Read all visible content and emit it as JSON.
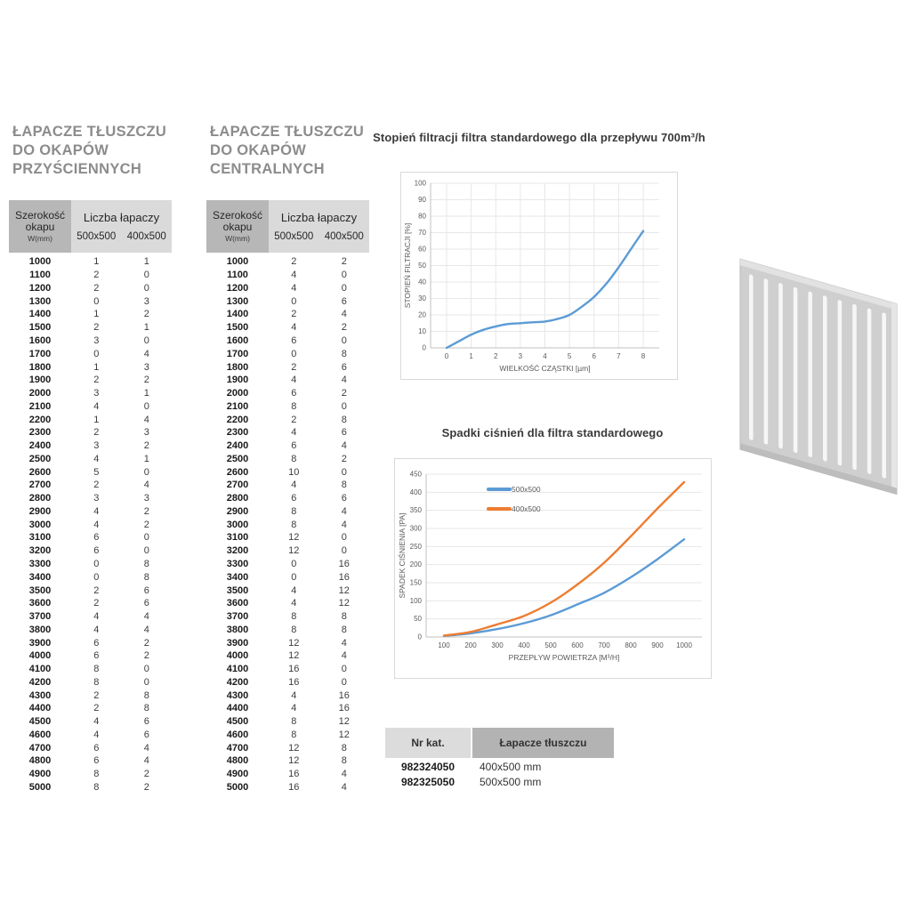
{
  "tables": {
    "wall": {
      "title": "ŁAPACZE TŁUSZCZU\nDO OKAPÓW\nPRZYŚCIENNYCH",
      "header": {
        "width_label": "Szerokość\nokapu",
        "width_unit": "W(mm)",
        "group_label": "Liczba łapaczy",
        "size_columns": [
          "500x500",
          "400x500"
        ]
      },
      "rows": [
        [
          1000,
          1,
          1
        ],
        [
          1100,
          2,
          0
        ],
        [
          1200,
          2,
          0
        ],
        [
          1300,
          0,
          3
        ],
        [
          1400,
          1,
          2
        ],
        [
          1500,
          2,
          1
        ],
        [
          1600,
          3,
          0
        ],
        [
          1700,
          0,
          4
        ],
        [
          1800,
          1,
          3
        ],
        [
          1900,
          2,
          2
        ],
        [
          2000,
          3,
          1
        ],
        [
          2100,
          4,
          0
        ],
        [
          2200,
          1,
          4
        ],
        [
          2300,
          2,
          3
        ],
        [
          2400,
          3,
          2
        ],
        [
          2500,
          4,
          1
        ],
        [
          2600,
          5,
          0
        ],
        [
          2700,
          2,
          4
        ],
        [
          2800,
          3,
          3
        ],
        [
          2900,
          4,
          2
        ],
        [
          3000,
          4,
          2
        ],
        [
          3100,
          6,
          0
        ],
        [
          3200,
          6,
          0
        ],
        [
          3300,
          0,
          8
        ],
        [
          3400,
          0,
          8
        ],
        [
          3500,
          2,
          6
        ],
        [
          3600,
          2,
          6
        ],
        [
          3700,
          4,
          4
        ],
        [
          3800,
          4,
          4
        ],
        [
          3900,
          6,
          2
        ],
        [
          4000,
          6,
          2
        ],
        [
          4100,
          8,
          0
        ],
        [
          4200,
          8,
          0
        ],
        [
          4300,
          2,
          8
        ],
        [
          4400,
          2,
          8
        ],
        [
          4500,
          4,
          6
        ],
        [
          4600,
          4,
          6
        ],
        [
          4700,
          6,
          4
        ],
        [
          4800,
          6,
          4
        ],
        [
          4900,
          8,
          2
        ],
        [
          5000,
          8,
          2
        ]
      ]
    },
    "central": {
      "title": "ŁAPACZE TŁUSZCZU\nDO OKAPÓW\nCENTRALNYCH",
      "header": {
        "width_label": "Szerokość\nokapu",
        "width_unit": "W(mm)",
        "group_label": "Liczba łapaczy",
        "size_columns": [
          "500x500",
          "400x500"
        ]
      },
      "rows": [
        [
          1000,
          2,
          2
        ],
        [
          1100,
          4,
          0
        ],
        [
          1200,
          4,
          0
        ],
        [
          1300,
          0,
          6
        ],
        [
          1400,
          2,
          4
        ],
        [
          1500,
          4,
          2
        ],
        [
          1600,
          6,
          0
        ],
        [
          1700,
          0,
          8
        ],
        [
          1800,
          2,
          6
        ],
        [
          1900,
          4,
          4
        ],
        [
          2000,
          6,
          2
        ],
        [
          2100,
          8,
          0
        ],
        [
          2200,
          2,
          8
        ],
        [
          2300,
          4,
          6
        ],
        [
          2400,
          6,
          4
        ],
        [
          2500,
          8,
          2
        ],
        [
          2600,
          10,
          0
        ],
        [
          2700,
          4,
          8
        ],
        [
          2800,
          6,
          6
        ],
        [
          2900,
          8,
          4
        ],
        [
          3000,
          8,
          4
        ],
        [
          3100,
          12,
          0
        ],
        [
          3200,
          12,
          0
        ],
        [
          3300,
          0,
          16
        ],
        [
          3400,
          0,
          16
        ],
        [
          3500,
          4,
          12
        ],
        [
          3600,
          4,
          12
        ],
        [
          3700,
          8,
          8
        ],
        [
          3800,
          8,
          8
        ],
        [
          3900,
          12,
          4
        ],
        [
          4000,
          12,
          4
        ],
        [
          4100,
          16,
          0
        ],
        [
          4200,
          16,
          0
        ],
        [
          4300,
          4,
          16
        ],
        [
          4400,
          4,
          16
        ],
        [
          4500,
          8,
          12
        ],
        [
          4600,
          8,
          12
        ],
        [
          4700,
          12,
          8
        ],
        [
          4800,
          12,
          8
        ],
        [
          4900,
          16,
          4
        ],
        [
          5000,
          16,
          4
        ]
      ]
    }
  },
  "chart_data": [
    {
      "type": "line",
      "title": "Stopień filtracji filtra standardowego dla przepływu 700m³/h",
      "xlabel": "WIELKOŚĆ CZĄSTKI [µm]",
      "ylabel": "STOPIEŃ FILTRACJI [%]",
      "xlim": [
        0,
        8
      ],
      "ylim": [
        0,
        100
      ],
      "xticks": [
        0,
        1,
        2,
        3,
        4,
        5,
        6,
        7,
        8
      ],
      "yticks": [
        0,
        10,
        20,
        30,
        40,
        50,
        60,
        70,
        80,
        90,
        100
      ],
      "grid": "both",
      "legend": null,
      "series": [
        {
          "color": "#5B9BD5",
          "x": [
            0,
            0.5,
            1,
            1.5,
            2,
            2.5,
            3,
            3.5,
            4,
            4.5,
            5,
            5.5,
            6,
            6.5,
            7,
            7.5,
            8
          ],
          "y": [
            0,
            4,
            8,
            11,
            13,
            14.5,
            15,
            15.5,
            16,
            17.5,
            20,
            25,
            31,
            39,
            49,
            60,
            71
          ]
        }
      ]
    },
    {
      "type": "line",
      "title": "Spadki ciśnień dla filtra standardowego",
      "xlabel": "PRZEPŁYW POWIETRZA [M³/H]",
      "ylabel": "SPADEK CIŚNIENIA [PA]",
      "xlim": [
        100,
        1000
      ],
      "ylim": [
        0,
        450
      ],
      "xticks": [
        100,
        200,
        300,
        400,
        500,
        600,
        700,
        800,
        900,
        1000
      ],
      "yticks": [
        0,
        50,
        100,
        150,
        200,
        250,
        300,
        350,
        400,
        450
      ],
      "grid": "horizontal",
      "legend": {
        "position": "top-inside",
        "entries": [
          "500x500",
          "400x500"
        ]
      },
      "series": [
        {
          "name": "500x500",
          "color": "#5B9BD5",
          "x": [
            100,
            200,
            300,
            400,
            500,
            600,
            700,
            800,
            900,
            1000
          ],
          "y": [
            3,
            10,
            22,
            38,
            60,
            90,
            122,
            165,
            215,
            270
          ]
        },
        {
          "name": "400x500",
          "color": "#ED7D31",
          "x": [
            100,
            200,
            300,
            400,
            500,
            600,
            700,
            800,
            900,
            1000
          ],
          "y": [
            4,
            14,
            35,
            58,
            95,
            145,
            205,
            278,
            355,
            428
          ]
        }
      ]
    }
  ],
  "catalog_table": {
    "headers": [
      "Nr kat.",
      "Łapacze tłuszczu"
    ],
    "rows": [
      [
        "982324050",
        "400x500 mm"
      ],
      [
        "982325050",
        "500x500 mm"
      ]
    ]
  },
  "colors": {
    "series_blue": "#5B9BD5",
    "series_orange": "#ED7D31",
    "table_header_dark": "#b7b7b7",
    "table_header_light": "#dadada",
    "catalog_header_light": "#dcdcdc",
    "catalog_header_dark": "#b3b3b3",
    "section_title_gray": "#8c8c8c"
  }
}
